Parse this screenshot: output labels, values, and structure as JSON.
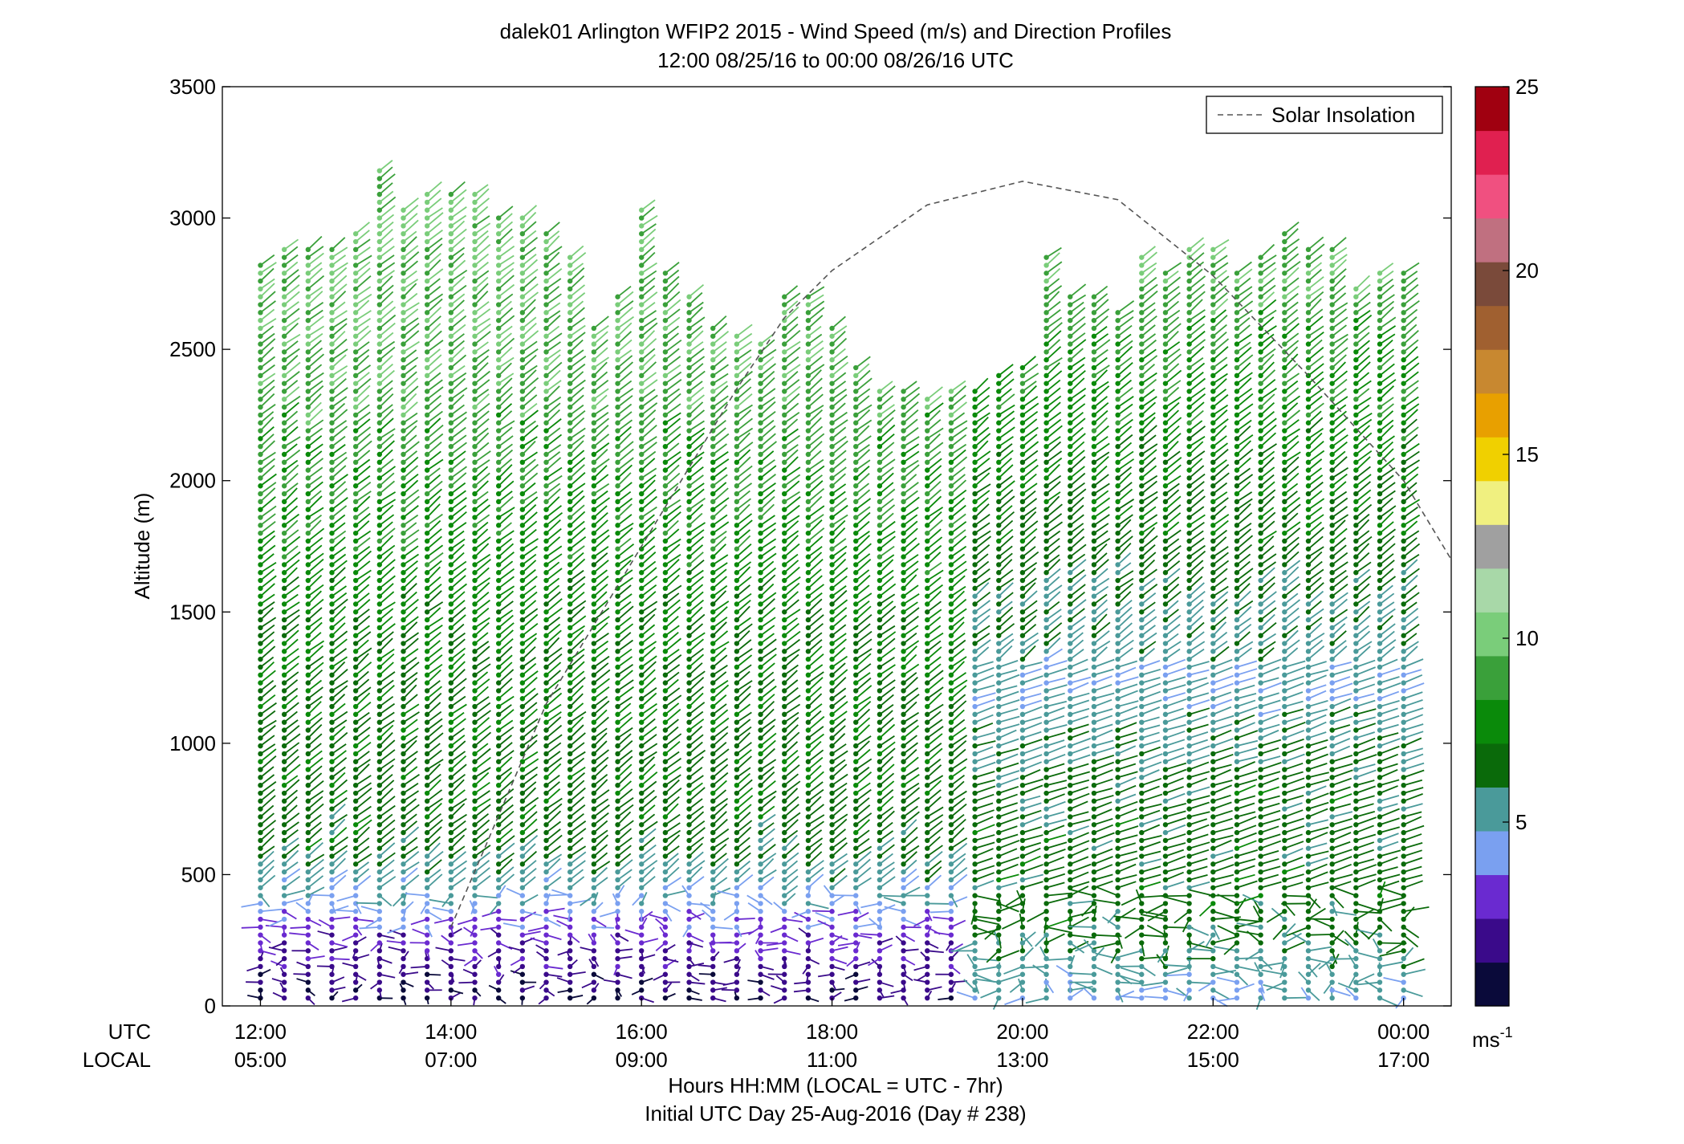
{
  "chart_data": {
    "type": "wind-barb-profile",
    "title": "dalek01 Arlington WFIP2 2015 - Wind Speed (m/s) and Direction Profiles",
    "subtitle": "12:00 08/25/16 to 00:00 08/26/16  UTC",
    "ylabel": "Altitude (m)",
    "xlabel": "Hours HH:MM  (LOCAL = UTC - 7hr)",
    "xlabel2": "Initial UTC Day 25-Aug-2016 (Day # 238)",
    "row_labels": {
      "utc": "UTC",
      "local": "LOCAL"
    },
    "ylim": [
      0,
      3500
    ],
    "yticks": [
      0,
      500,
      1000,
      1500,
      2000,
      2500,
      3000,
      3500
    ],
    "xlim_hours_utc": [
      11.6,
      24.5
    ],
    "xticks_utc": [
      {
        "hour": 12,
        "utc": "12:00",
        "local": "05:00"
      },
      {
        "hour": 14,
        "utc": "14:00",
        "local": "07:00"
      },
      {
        "hour": 16,
        "utc": "16:00",
        "local": "09:00"
      },
      {
        "hour": 18,
        "utc": "18:00",
        "local": "11:00"
      },
      {
        "hour": 20,
        "utc": "20:00",
        "local": "13:00"
      },
      {
        "hour": 22,
        "utc": "22:00",
        "local": "15:00"
      },
      {
        "hour": 24,
        "utc": "00:00",
        "local": "17:00"
      }
    ],
    "legend": {
      "label": "Solar Insolation",
      "placement": "top-right",
      "style": "dashed"
    },
    "colorbar": {
      "unit_base": "ms",
      "unit_exp": "-1",
      "range": [
        0,
        25
      ],
      "ticks": [
        5,
        10,
        15,
        20,
        25
      ],
      "colors": [
        "#0a0a3a",
        "#3a0a8a",
        "#6a2ad0",
        "#7aa0f0",
        "#4a9a9a",
        "#0a6a0a",
        "#0a8a0a",
        "#3aa03a",
        "#7acd7a",
        "#a8d8a8",
        "#a0a0a0",
        "#f0f080",
        "#f0d000",
        "#e8a000",
        "#c88830",
        "#a06030",
        "#7a4a3a",
        "#c07080",
        "#f05080",
        "#e02050",
        "#a00010"
      ]
    },
    "solar_insolation_curve": {
      "peak_hour_utc": 20.0,
      "peak_altitude": 3140,
      "points": [
        [
          14.0,
          300
        ],
        [
          15.0,
          1150
        ],
        [
          16.0,
          1750
        ],
        [
          17.0,
          2350
        ],
        [
          17.5,
          2620
        ],
        [
          18.0,
          2800
        ],
        [
          19.0,
          3050
        ],
        [
          20.0,
          3140
        ],
        [
          21.0,
          3070
        ],
        [
          22.0,
          2780
        ],
        [
          23.0,
          2400
        ],
        [
          24.0,
          2000
        ],
        [
          24.5,
          1700
        ]
      ]
    },
    "profiles": {
      "start_hour_utc": 12.0,
      "interval_hours": 0.25,
      "count": 49,
      "gate_spacing_m": 30,
      "first_gate_m": 30,
      "max_altitude_m": [
        2830,
        2900,
        2900,
        2900,
        2950,
        3200,
        3050,
        3100,
        3100,
        3100,
        3000,
        3000,
        2950,
        2850,
        2600,
        2700,
        3050,
        2800,
        2700,
        2600,
        2550,
        2520,
        2700,
        2700,
        2600,
        2450,
        2350,
        2350,
        2320,
        2350,
        2350,
        2400,
        2450,
        2850,
        2700,
        2700,
        2650,
        2850,
        2800,
        2900,
        2900,
        2800,
        2850,
        2950,
        2900,
        2900,
        2750,
        2800,
        2800
      ],
      "speed_profile_morning": [
        [
          0,
          1
        ],
        [
          250,
          2.5
        ],
        [
          400,
          4.5
        ],
        [
          600,
          6.5
        ],
        [
          1200,
          7
        ],
        [
          1800,
          8
        ],
        [
          2500,
          9.5
        ],
        [
          3200,
          10
        ]
      ],
      "speed_profile_afternoon": [
        [
          0,
          4.5
        ],
        [
          300,
          6.5
        ],
        [
          800,
          6.5
        ],
        [
          1200,
          5
        ],
        [
          1700,
          6.5
        ],
        [
          2500,
          8.5
        ],
        [
          3000,
          10
        ]
      ]
    }
  }
}
